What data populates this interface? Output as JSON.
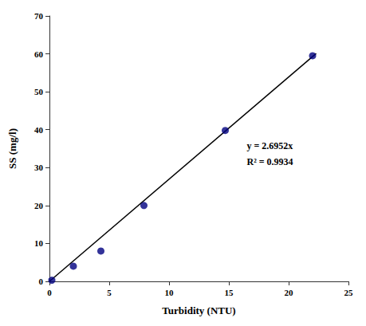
{
  "chart_data": {
    "type": "scatter",
    "xlabel": "Turbidity (NTU)",
    "ylabel": "SS (mg/l)",
    "series": [
      {
        "type": "line",
        "x": [
          0,
          22.3
        ],
        "values": [
          0,
          60.10296
        ],
        "color": "#000000"
      },
      {
        "type": "scatter",
        "x": [
          0.2,
          2.0,
          4.3,
          7.9,
          14.7,
          22.0
        ],
        "values": [
          0.3,
          4.0,
          8.0,
          20.0,
          39.8,
          59.5
        ],
        "color": "#000080"
      }
    ],
    "annotations": [
      "y = 2.6952x",
      "R² = 0.9934"
    ],
    "xlim": [
      0,
      25
    ],
    "ylim": [
      0,
      70
    ],
    "xticks": [
      0,
      5,
      10,
      15,
      20,
      25
    ],
    "yticks": [
      0,
      10,
      20,
      30,
      40,
      50,
      60,
      70
    ],
    "grid": false
  }
}
